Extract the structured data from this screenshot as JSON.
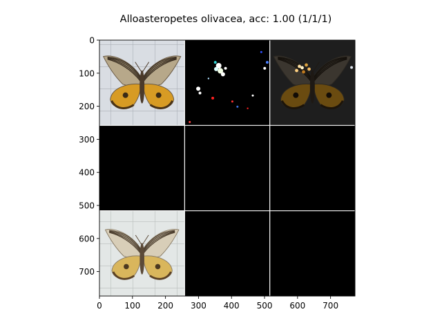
{
  "chart_data": {
    "type": "image",
    "title": "Alloasteropetes olivacea, acc: 1.00 (1/1/1)",
    "xlim": [
      0,
      774
    ],
    "ylim": [
      774,
      0
    ],
    "x_ticks": [
      0,
      100,
      200,
      300,
      400,
      500,
      600,
      700
    ],
    "y_ticks": [
      0,
      100,
      200,
      300,
      400,
      500,
      600,
      700
    ],
    "x_tick_labels": [
      "0",
      "100",
      "200",
      "300",
      "400",
      "500",
      "600",
      "700"
    ],
    "y_tick_labels": [
      "0",
      "100",
      "200",
      "300",
      "400",
      "500",
      "600",
      "700"
    ],
    "grid": {
      "rows": 3,
      "cols": 3,
      "tile_size": 258,
      "separator_color": "#ffffff",
      "tiles": [
        {
          "row": 0,
          "col": 0,
          "content": "moth-photo",
          "background": "#d9dde3",
          "accent": "#d79b24"
        },
        {
          "row": 0,
          "col": 1,
          "content": "sparse-saliency-mask",
          "background": "#000000"
        },
        {
          "row": 0,
          "col": 2,
          "content": "dimmed-overlay",
          "background": "#1e1e1e",
          "accent": "#6a4b10"
        },
        {
          "row": 1,
          "col": 0,
          "content": "blank",
          "background": "#000000"
        },
        {
          "row": 1,
          "col": 1,
          "content": "blank",
          "background": "#000000"
        },
        {
          "row": 1,
          "col": 2,
          "content": "blank",
          "background": "#000000"
        },
        {
          "row": 2,
          "col": 0,
          "content": "moth-photo-reference",
          "background": "#e3e7e6",
          "accent": "#d9b65c"
        },
        {
          "row": 2,
          "col": 1,
          "content": "blank",
          "background": "#000000"
        },
        {
          "row": 2,
          "col": 2,
          "content": "blank",
          "background": "#000000"
        }
      ]
    }
  }
}
